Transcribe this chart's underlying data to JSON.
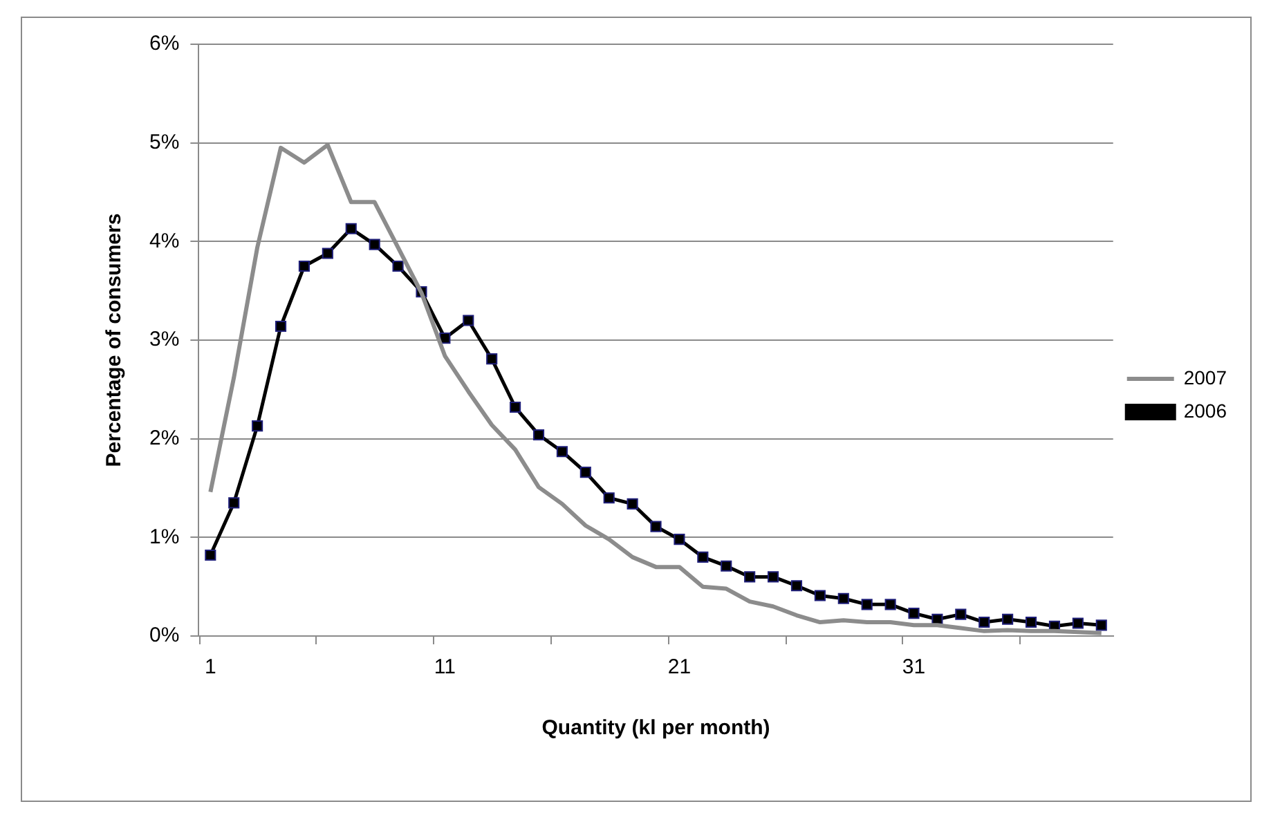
{
  "chart_data": {
    "type": "line",
    "xlabel": "Quantity (kl per month)",
    "ylabel": "Percentage of consumers",
    "categories": [
      "1",
      null,
      null,
      null,
      null,
      null,
      null,
      null,
      null,
      null,
      "11",
      null,
      null,
      null,
      null,
      null,
      null,
      null,
      null,
      null,
      "21",
      null,
      null,
      null,
      null,
      null,
      null,
      null,
      null,
      null,
      "31",
      null,
      null,
      null,
      null,
      null,
      null,
      null,
      null
    ],
    "series": [
      {
        "name": "2007",
        "color": "#8c8c8c",
        "marker": "none",
        "values": [
          1.46,
          2.62,
          3.94,
          4.95,
          4.8,
          4.98,
          4.4,
          4.4,
          3.94,
          3.48,
          2.84,
          2.48,
          2.14,
          1.89,
          1.51,
          1.34,
          1.12,
          0.98,
          0.8,
          0.7,
          0.7,
          0.5,
          0.48,
          0.35,
          0.3,
          0.21,
          0.14,
          0.16,
          0.14,
          0.14,
          0.11,
          0.11,
          0.08,
          0.05,
          0.06,
          0.05,
          0.05,
          0.04,
          0.03
        ]
      },
      {
        "name": "2006",
        "color": "#000000",
        "marker": "square",
        "values": [
          0.82,
          1.35,
          2.13,
          3.14,
          3.75,
          3.88,
          4.13,
          3.97,
          3.75,
          3.49,
          3.02,
          3.2,
          2.81,
          2.32,
          2.04,
          1.87,
          1.66,
          1.4,
          1.34,
          1.11,
          0.98,
          0.8,
          0.71,
          0.6,
          0.6,
          0.51,
          0.41,
          0.38,
          0.32,
          0.32,
          0.23,
          0.17,
          0.22,
          0.14,
          0.17,
          0.14,
          0.1,
          0.13,
          0.11
        ]
      }
    ],
    "ylim": [
      0,
      6
    ],
    "yticks": [
      {
        "value": 0,
        "label": "0%"
      },
      {
        "value": 1,
        "label": "1%"
      },
      {
        "value": 2,
        "label": "2%"
      },
      {
        "value": 3,
        "label": "3%"
      },
      {
        "value": 4,
        "label": "4%"
      },
      {
        "value": 5,
        "label": "5%"
      },
      {
        "value": 6,
        "label": "6%"
      }
    ],
    "grid": "y",
    "legend": "right",
    "line_style": "solid"
  }
}
